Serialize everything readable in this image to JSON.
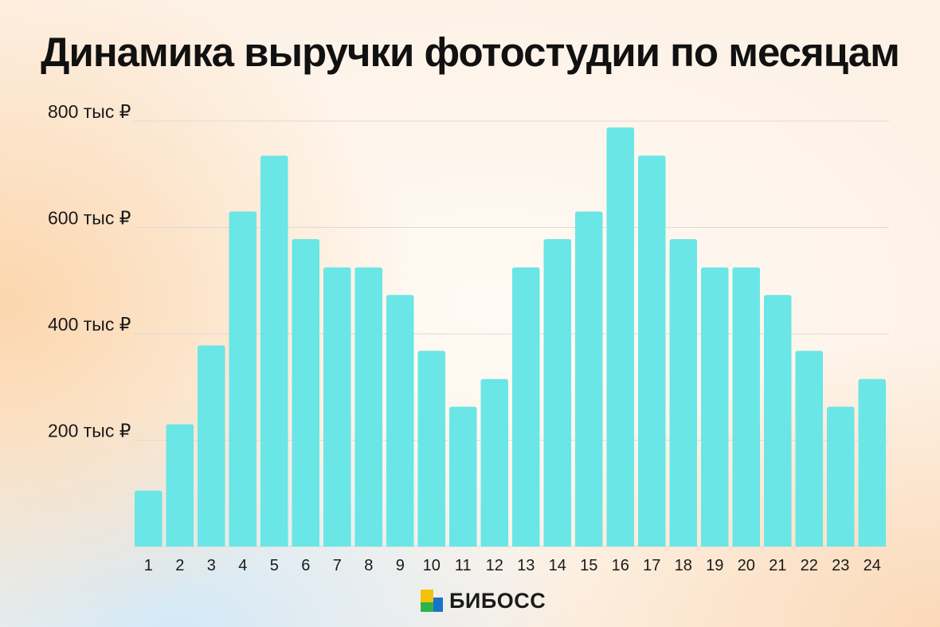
{
  "title": "Динамика выручки фотостудии по месяцам",
  "brand": {
    "name": "БИБОСС"
  },
  "colors": {
    "bar": "#6ae6e6",
    "grid": "#dedad6",
    "logo_yellow": "#f4c20d",
    "logo_green": "#2db34a",
    "logo_blue": "#1a73c8"
  },
  "chart_data": {
    "type": "bar",
    "title": "Динамика выручки фотостудии по месяцам",
    "xlabel": "",
    "ylabel": "",
    "categories": [
      "1",
      "2",
      "3",
      "4",
      "5",
      "6",
      "7",
      "8",
      "9",
      "10",
      "11",
      "12",
      "13",
      "14",
      "15",
      "16",
      "17",
      "18",
      "19",
      "20",
      "21",
      "22",
      "23",
      "24"
    ],
    "values": [
      105,
      230,
      378,
      630,
      735,
      578,
      525,
      525,
      473,
      368,
      263,
      315,
      525,
      578,
      630,
      788,
      735,
      578,
      525,
      525,
      473,
      368,
      263,
      315
    ],
    "ylim": [
      0,
      800
    ],
    "yticks": [
      {
        "value": 200,
        "label": "200 тыс ₽"
      },
      {
        "value": 400,
        "label": "400 тыс ₽"
      },
      {
        "value": 600,
        "label": "600 тыс ₽"
      },
      {
        "value": 800,
        "label": "800 тыс ₽"
      }
    ],
    "grid": true,
    "legend": "none"
  }
}
